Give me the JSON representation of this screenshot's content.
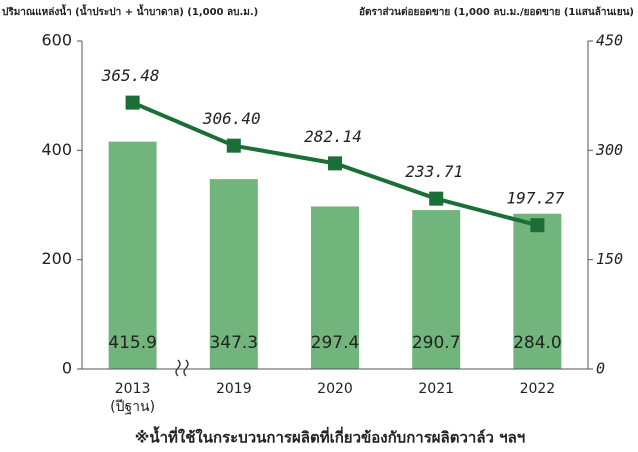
{
  "chart_data": {
    "type": "bar_line",
    "y_label": "ปริมาณแหล่งน้ำ (น้ำประปา + น้ำบาดาล) (1,000 ลบ.ม.)",
    "y2_label": "อัตราส่วนต่อยอดขาย (1,000 ลบ.ม./ยอดขาย (1แสนล้านเยน)",
    "categories": [
      "2013",
      "2019",
      "2020",
      "2021",
      "2022"
    ],
    "base_year_note": "(ปีฐาน)",
    "series": [
      {
        "name": "ปริมาณแหล่งน้ำ",
        "type": "bar",
        "color": "#71b57c",
        "values": [
          415.9,
          347.3,
          297.4,
          290.7,
          284.0
        ],
        "value_labels": [
          "415.9",
          "347.3",
          "297.4",
          "290.7",
          "284.0"
        ]
      },
      {
        "name": "อัตราส่วนต่อยอดขาย",
        "type": "line",
        "axis": "y2",
        "color": "#1b6e37",
        "values": [
          365.48,
          306.4,
          282.14,
          233.71,
          197.27
        ],
        "value_labels": [
          "365.48",
          "306.40",
          "282.14",
          "233.71",
          "197.27"
        ]
      }
    ],
    "ylim": [
      0,
      600
    ],
    "yticks": [
      0,
      200,
      400,
      600
    ],
    "y2lim": [
      0,
      450
    ],
    "y2ticks": [
      0,
      150,
      300,
      450
    ],
    "footnote": "※น้ำที่ใช้ในกระบวนการผลิตที่เกี่ยวข้องกับการผลิตวาล์ว ฯลฯ"
  }
}
